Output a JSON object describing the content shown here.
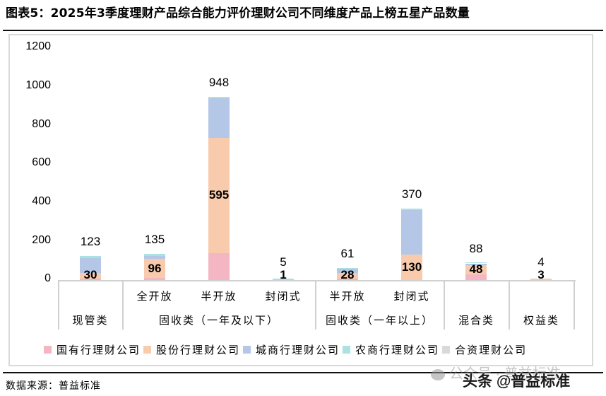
{
  "header": {
    "title": "图表5：2025年3季度理财产品综合能力评价理财公司不同维度产品上榜五星产品数量"
  },
  "colors": {
    "state_owned": "#f4b6c2",
    "joint_stock": "#f8cbad",
    "city_commercial": "#b4c7e7",
    "rural_commercial": "#a9e3e1",
    "joint_venture": "#d9d9d9"
  },
  "chart_data": {
    "type": "bar",
    "stacked": true,
    "title": "2025年3季度理财产品综合能力评价理财公司不同维度产品上榜五星产品数量",
    "xlabel": "",
    "ylabel": "",
    "ylim": [
      0,
      1200
    ],
    "yticks": [
      0,
      200,
      400,
      600,
      800,
      1000,
      1200
    ],
    "grid": false,
    "legend_position": "bottom",
    "categories": [
      "现管类",
      "全开放",
      "半开放",
      "封闭式",
      "半开放",
      "封闭式",
      "混合类",
      "权益类"
    ],
    "category_groups": [
      {
        "label": "现管类",
        "members": [
          ""
        ]
      },
      {
        "label": "固收类（一年及以下）",
        "members": [
          "全开放",
          "半开放",
          "封闭式"
        ]
      },
      {
        "label": "固收类（一年以上）",
        "members": [
          "半开放",
          "封闭式"
        ]
      },
      {
        "label": "混合类",
        "members": [
          ""
        ]
      },
      {
        "label": "权益类",
        "members": [
          ""
        ]
      }
    ],
    "series": [
      {
        "name": "国有行理财公司",
        "values": [
          7,
          12,
          140,
          0,
          8,
          0,
          30,
          1
        ]
      },
      {
        "name": "股份行理财公司",
        "values": [
          30,
          96,
          595,
          1,
          28,
          130,
          48,
          3
        ]
      },
      {
        "name": "城商行理财公司",
        "values": [
          78,
          18,
          205,
          0,
          22,
          234,
          8,
          0
        ]
      },
      {
        "name": "农商行理财公司",
        "values": [
          8,
          9,
          8,
          4,
          3,
          6,
          2,
          0
        ]
      },
      {
        "name": "合资理财公司",
        "values": [
          0,
          0,
          0,
          0,
          0,
          0,
          0,
          0
        ]
      }
    ],
    "totals": [
      123,
      135,
      948,
      5,
      61,
      370,
      88,
      4
    ],
    "data_labels_joint_stock": [
      30,
      96,
      595,
      1,
      28,
      130,
      48,
      3
    ]
  },
  "axis": {
    "yticks": [
      "1200",
      "1000",
      "800",
      "600",
      "400",
      "200",
      "0"
    ],
    "sub_labels": [
      "全开放",
      "半开放",
      "封闭式",
      "半开放",
      "封闭式"
    ],
    "group_labels": [
      "现管类",
      "固收类（一年及以下）",
      "固收类（一年以上）",
      "混合类",
      "权益类"
    ]
  },
  "legend": {
    "items": [
      {
        "label": "国有行理财公司"
      },
      {
        "label": "股份行理财公司"
      },
      {
        "label": "城商行理财公司"
      },
      {
        "label": "农商行理财公司"
      },
      {
        "label": "合资理财公司"
      }
    ]
  },
  "footer": {
    "source": "数据来源：普益标准",
    "watermark_1": "公众号 · 普益标准",
    "watermark_2": "头条 @普益标准"
  }
}
